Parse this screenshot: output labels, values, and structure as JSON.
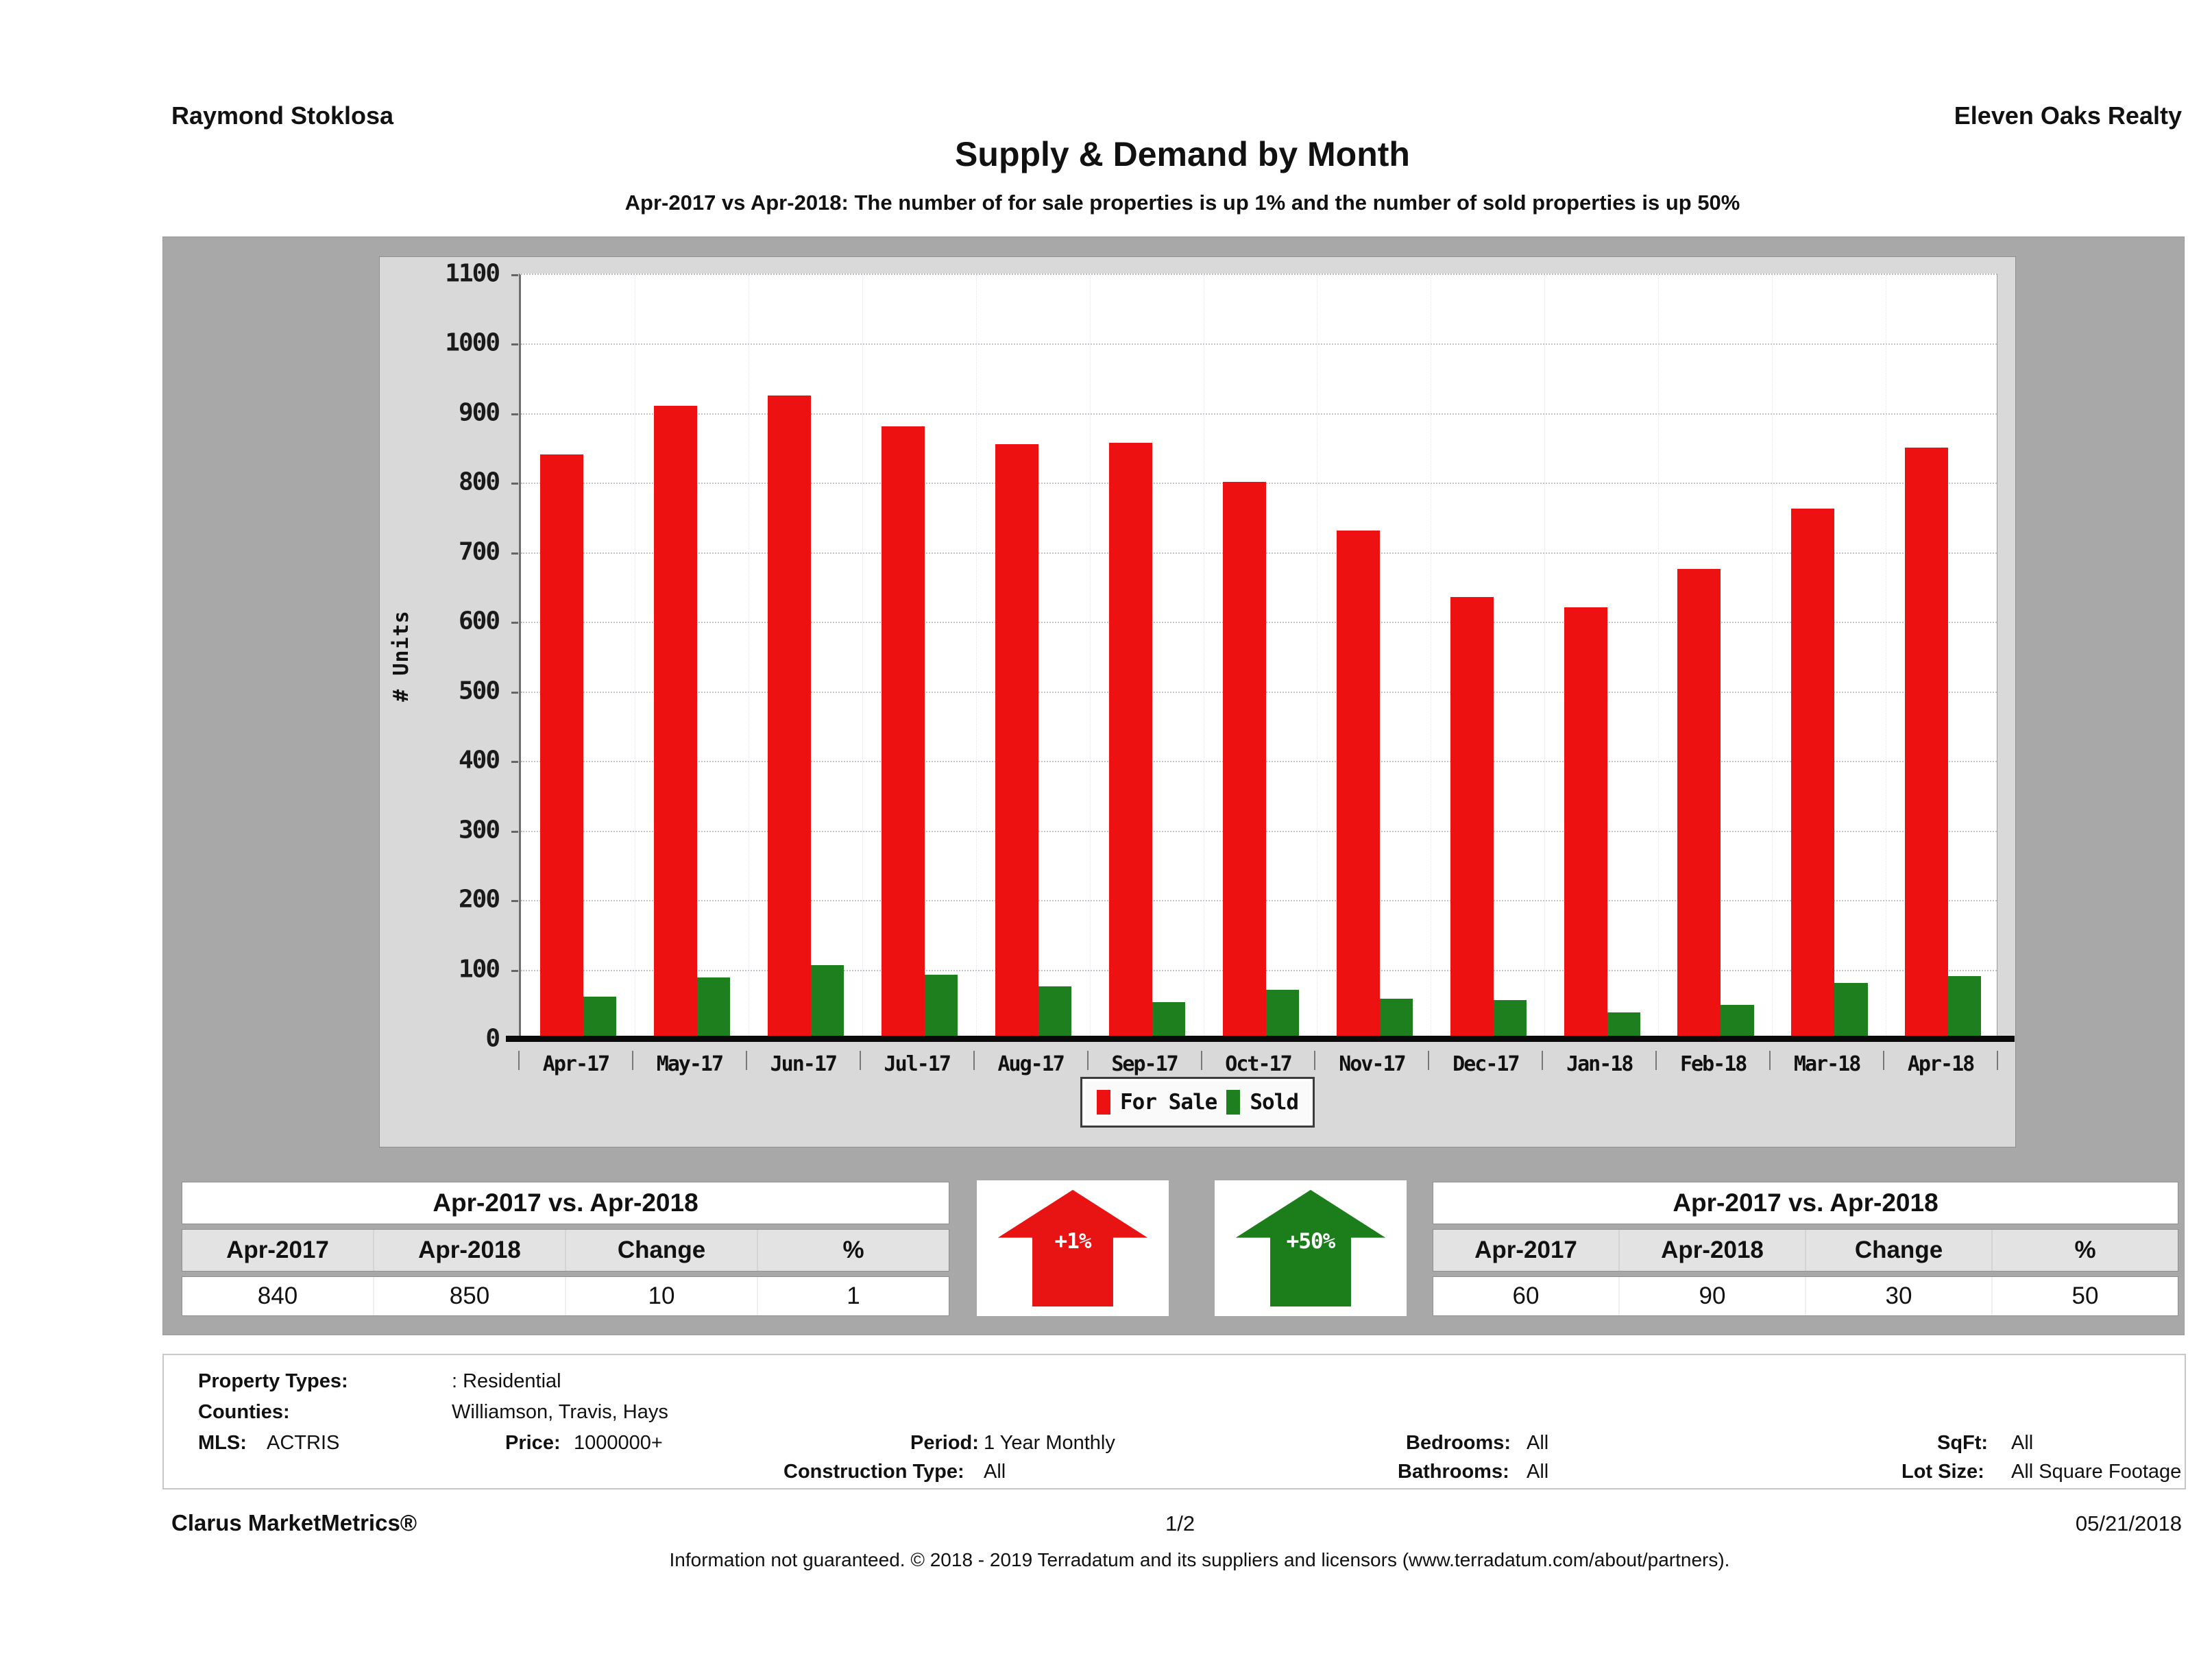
{
  "page": {
    "agent_name": "Raymond Stoklosa",
    "company_name": "Eleven Oaks Realty",
    "title": "Supply & Demand by Month",
    "subtitle": "Apr-2017 vs Apr-2018: The number of for sale properties is up 1% and the number of sold properties is up 50%"
  },
  "chart_data": {
    "type": "bar",
    "title": "Supply & Demand by Month",
    "xlabel": "",
    "ylabel": "# Units",
    "ylim": [
      0,
      1100
    ],
    "ytick_step": 100,
    "grid": "horizontal-dotted",
    "legend_position": "bottom-center",
    "categories": [
      "Apr-17",
      "May-17",
      "Jun-17",
      "Jul-17",
      "Aug-17",
      "Sep-17",
      "Oct-17",
      "Nov-17",
      "Dec-17",
      "Jan-18",
      "Feb-18",
      "Mar-18",
      "Apr-18"
    ],
    "series": [
      {
        "name": "For Sale",
        "color": "#ee1111",
        "values": [
          840,
          910,
          925,
          880,
          855,
          857,
          800,
          730,
          635,
          620,
          675,
          762,
          850
        ]
      },
      {
        "name": "Sold",
        "color": "#1e7f1e",
        "values": [
          60,
          88,
          105,
          92,
          75,
          52,
          70,
          57,
          55,
          37,
          48,
          80,
          90
        ]
      }
    ]
  },
  "comparison_left": {
    "title": "Apr-2017 vs. Apr-2018",
    "columns": [
      "Apr-2017",
      "Apr-2018",
      "Change",
      "%"
    ],
    "values": [
      "840",
      "850",
      "10",
      "1"
    ]
  },
  "comparison_right": {
    "title": "Apr-2017 vs. Apr-2018",
    "columns": [
      "Apr-2017",
      "Apr-2018",
      "Change",
      "%"
    ],
    "values": [
      "60",
      "90",
      "30",
      "50"
    ]
  },
  "badges": {
    "for_sale_change": "+1%",
    "sold_change": "+50%"
  },
  "criteria": {
    "property_types_label": "Property Types:",
    "property_types_value": ": Residential",
    "counties_label": "Counties:",
    "counties_value": "Williamson, Travis, Hays",
    "mls_label": "MLS:",
    "mls_value": "ACTRIS",
    "price_label": "Price:",
    "price_value": "1000000+",
    "period_label": "Period:",
    "period_value": "1 Year Monthly",
    "bedrooms_label": "Bedrooms:",
    "bedrooms_value": "All",
    "sqft_label": "SqFt:",
    "sqft_value": "All",
    "construction_label": "Construction Type:",
    "construction_value": "All",
    "bathrooms_label": "Bathrooms:",
    "bathrooms_value": "All",
    "lot_size_label": "Lot Size:",
    "lot_size_value": "All Square Footage"
  },
  "footer": {
    "brand": "Clarus MarketMetrics®",
    "page_number": "1/2",
    "date": "05/21/2018",
    "disclaimer": "Information not guaranteed. © 2018 - 2019 Terradatum and its suppliers and licensors (www.terradatum.com/about/partners)."
  }
}
